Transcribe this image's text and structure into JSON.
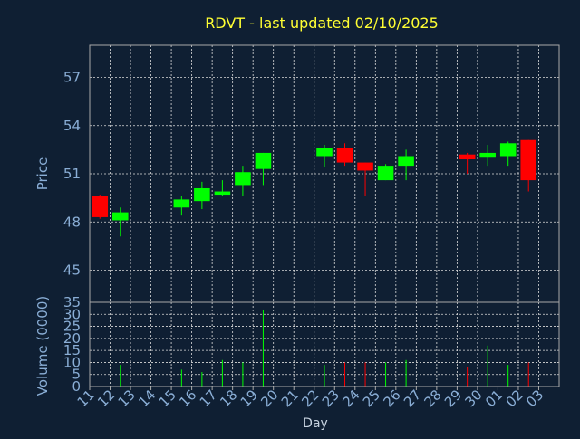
{
  "chart_data": {
    "type": "candlestick",
    "title": "RDVT - last updated 02/10/2025",
    "price_axis": {
      "label": "Price",
      "ylim": [
        43,
        59
      ],
      "ticks": [
        45,
        48,
        51,
        54,
        57
      ]
    },
    "volume_axis": {
      "label": "Volume (0000)",
      "ylim": [
        0,
        35
      ],
      "ticks": [
        0,
        5,
        10,
        15,
        20,
        25,
        30,
        35
      ]
    },
    "xlabel": "Day",
    "x_ticks": [
      "11",
      "12",
      "13",
      "14",
      "15",
      "16",
      "17",
      "18",
      "19",
      "20",
      "21",
      "22",
      "23",
      "24",
      "25",
      "26",
      "27",
      "28",
      "29",
      "30",
      "01",
      "02",
      "03"
    ],
    "grid": true,
    "up_color": "#00ff00",
    "down_color": "#ff0000",
    "candles": [
      {
        "day": "11",
        "open": 49.6,
        "high": 49.7,
        "low": 48.2,
        "close": 48.3,
        "volume": 0
      },
      {
        "day": "12",
        "open": 48.1,
        "high": 48.9,
        "low": 47.1,
        "close": 48.6,
        "volume": 9
      },
      {
        "day": "15",
        "open": 48.9,
        "high": 49.6,
        "low": 48.4,
        "close": 49.4,
        "volume": 7
      },
      {
        "day": "16",
        "open": 49.3,
        "high": 50.5,
        "low": 48.8,
        "close": 50.1,
        "volume": 6
      },
      {
        "day": "17",
        "open": 49.7,
        "high": 50.6,
        "low": 49.6,
        "close": 49.9,
        "volume": 11
      },
      {
        "day": "18",
        "open": 50.3,
        "high": 51.5,
        "low": 49.6,
        "close": 51.1,
        "volume": 10
      },
      {
        "day": "19",
        "open": 51.3,
        "high": 52.3,
        "low": 50.3,
        "close": 52.3,
        "volume": 32
      },
      {
        "day": "22",
        "open": 52.1,
        "high": 52.8,
        "low": 51.4,
        "close": 52.6,
        "volume": 9
      },
      {
        "day": "23",
        "open": 52.6,
        "high": 52.9,
        "low": 51.5,
        "close": 51.7,
        "volume": 10
      },
      {
        "day": "24",
        "open": 51.7,
        "high": 51.7,
        "low": 49.6,
        "close": 51.2,
        "volume": 10
      },
      {
        "day": "25",
        "open": 50.6,
        "high": 51.6,
        "low": 50.6,
        "close": 51.5,
        "volume": 10
      },
      {
        "day": "26",
        "open": 51.5,
        "high": 52.5,
        "low": 50.6,
        "close": 52.1,
        "volume": 11
      },
      {
        "day": "29",
        "open": 52.2,
        "high": 52.3,
        "low": 51.0,
        "close": 51.9,
        "volume": 8
      },
      {
        "day": "30",
        "open": 52.0,
        "high": 52.8,
        "low": 51.5,
        "close": 52.3,
        "volume": 17
      },
      {
        "day": "01",
        "open": 52.1,
        "high": 53.0,
        "low": 51.5,
        "close": 52.9,
        "volume": 9
      },
      {
        "day": "02",
        "open": 53.1,
        "high": 53.1,
        "low": 49.9,
        "close": 50.6,
        "volume": 10
      }
    ]
  }
}
